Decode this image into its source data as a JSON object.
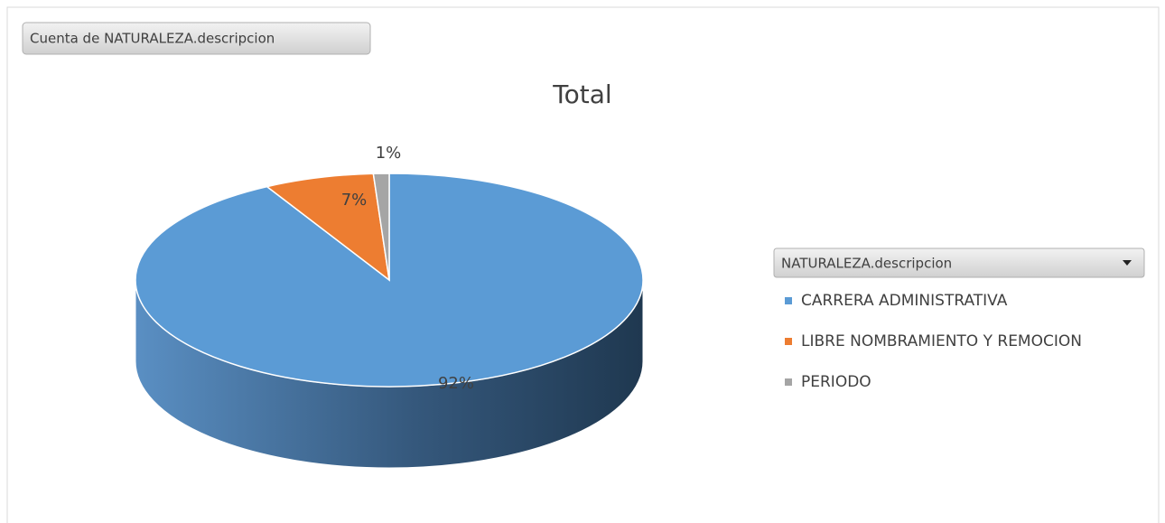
{
  "chart_data": {
    "type": "pie",
    "title": "Total",
    "field_button": "Cuenta de NATURALEZA.descripcion",
    "legend_title": "NATURALEZA.descripcion",
    "legend": "right",
    "categories": [
      "CARRERA ADMINISTRATIVA",
      "LIBRE NOMBRAMIENTO Y REMOCION",
      "PERIODO"
    ],
    "values": [
      92,
      7,
      1
    ],
    "value_labels": [
      "92%",
      "7%",
      "1%"
    ],
    "colors": [
      "#5b9bd5",
      "#ed7d31",
      "#a5a5a5"
    ]
  }
}
